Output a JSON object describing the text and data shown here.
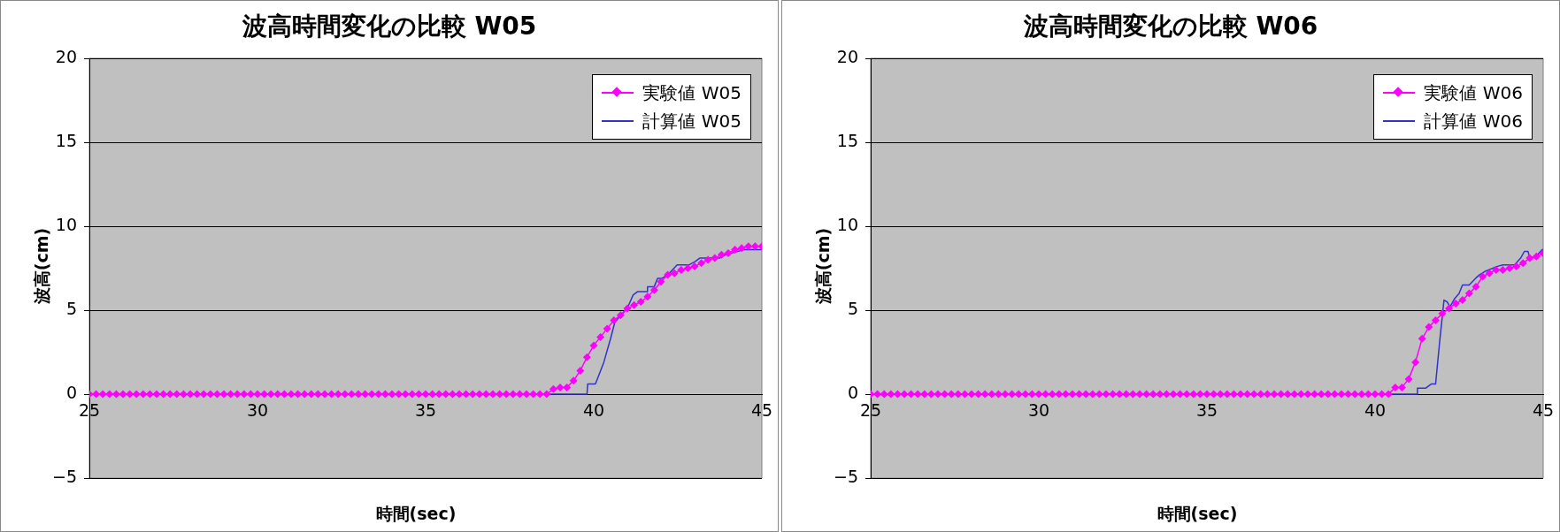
{
  "chart_data": [
    {
      "type": "line",
      "title": "波高時間変化の比較 W05",
      "xlabel": "時間(sec)",
      "ylabel": "波高(cm)",
      "xlim": [
        25,
        45
      ],
      "xticks": [
        25,
        30,
        35,
        40,
        45
      ],
      "ylim": [
        -5,
        20
      ],
      "yticks": [
        -5,
        0,
        5,
        10,
        15,
        20
      ],
      "grid": "y",
      "legend": "top right",
      "marker": "diamond",
      "x": [
        25,
        25.2,
        25.4,
        25.6,
        25.8,
        26,
        26.2,
        26.4,
        26.6,
        26.8,
        27,
        27.2,
        27.4,
        27.6,
        27.8,
        28,
        28.2,
        28.4,
        28.6,
        28.8,
        29,
        29.2,
        29.4,
        29.6,
        29.8,
        30,
        30.2,
        30.4,
        30.6,
        30.8,
        31,
        31.2,
        31.4,
        31.6,
        31.8,
        32,
        32.2,
        32.4,
        32.6,
        32.8,
        33,
        33.2,
        33.4,
        33.6,
        33.8,
        34,
        34.2,
        34.4,
        34.6,
        34.8,
        35,
        35.2,
        35.4,
        35.6,
        35.8,
        36,
        36.2,
        36.4,
        36.6,
        36.8,
        37,
        37.2,
        37.4,
        37.6,
        37.8,
        38,
        38.2,
        38.4,
        38.6,
        38.8,
        39,
        39.2,
        39.4,
        39.6,
        39.8,
        40,
        40.2,
        40.4,
        40.6,
        40.8,
        41,
        41.2,
        41.4,
        41.6,
        41.8,
        42,
        42.2,
        42.4,
        42.6,
        42.8,
        43,
        43.2,
        43.4,
        43.6,
        43.8,
        44,
        44.2,
        44.4,
        44.6,
        44.8,
        45
      ],
      "series": [
        {
          "name": "実験値 W05",
          "color": "#ff00ff",
          "values": [
            0,
            0,
            0,
            0,
            0,
            0,
            0,
            0,
            0,
            0,
            0,
            0,
            0,
            0,
            0,
            0,
            0,
            0,
            0,
            0,
            0,
            0,
            0,
            0,
            0,
            0,
            0,
            0,
            0,
            0,
            0,
            0,
            0,
            0,
            0,
            0,
            0,
            0,
            0,
            0,
            0,
            0,
            0,
            0,
            0,
            0,
            0,
            0,
            0,
            0,
            0,
            0,
            0,
            0,
            0,
            0,
            0,
            0,
            0,
            0,
            0,
            0,
            0,
            0,
            0,
            0,
            0,
            0,
            0,
            0.3,
            0.4,
            0.4,
            0.8,
            1.4,
            2.2,
            2.9,
            3.4,
            3.9,
            4.4,
            4.7,
            5.1,
            5.3,
            5.5,
            5.8,
            6.2,
            6.7,
            7.1,
            7.2,
            7.4,
            7.5,
            7.6,
            7.8,
            8.0,
            8.1,
            8.3,
            8.4,
            8.6,
            8.7,
            8.8,
            8.8,
            8.8
          ]
        },
        {
          "name": "計算値 W05",
          "color": "#3333cc",
          "marker": "none",
          "x": [
            25,
            39.8,
            39.82,
            40.05,
            40.3,
            40.5,
            40.63,
            40.86,
            41.04,
            41.17,
            41.3,
            41.58,
            41.6,
            41.8,
            41.9,
            42.03,
            42.2,
            42.48,
            42.84,
            43.02,
            43.15,
            43.74,
            43.92,
            44.46,
            45
          ],
          "values": [
            0,
            0,
            0.6,
            0.6,
            1.9,
            3.3,
            4.3,
            4.8,
            5.3,
            5.9,
            6.1,
            6.1,
            6.4,
            6.4,
            6.9,
            6.9,
            7.1,
            7.7,
            7.7,
            7.9,
            8.1,
            8.1,
            8.3,
            8.6,
            8.6
          ]
        }
      ]
    },
    {
      "type": "line",
      "title": "波高時間変化の比較 W06",
      "xlabel": "時間(sec)",
      "ylabel": "波高(cm)",
      "xlim": [
        25,
        45
      ],
      "xticks": [
        25,
        30,
        35,
        40,
        45
      ],
      "ylim": [
        -5,
        20
      ],
      "yticks": [
        -5,
        0,
        5,
        10,
        15,
        20
      ],
      "grid": "y",
      "legend": "top right",
      "marker": "diamond",
      "x": [
        25,
        25.2,
        25.4,
        25.6,
        25.8,
        26,
        26.2,
        26.4,
        26.6,
        26.8,
        27,
        27.2,
        27.4,
        27.6,
        27.8,
        28,
        28.2,
        28.4,
        28.6,
        28.8,
        29,
        29.2,
        29.4,
        29.6,
        29.8,
        30,
        30.2,
        30.4,
        30.6,
        30.8,
        31,
        31.2,
        31.4,
        31.6,
        31.8,
        32,
        32.2,
        32.4,
        32.6,
        32.8,
        33,
        33.2,
        33.4,
        33.6,
        33.8,
        34,
        34.2,
        34.4,
        34.6,
        34.8,
        35,
        35.2,
        35.4,
        35.6,
        35.8,
        36,
        36.2,
        36.4,
        36.6,
        36.8,
        37,
        37.2,
        37.4,
        37.6,
        37.8,
        38,
        38.2,
        38.4,
        38.6,
        38.8,
        39,
        39.2,
        39.4,
        39.6,
        39.8,
        40,
        40.2,
        40.4,
        40.6,
        40.8,
        41,
        41.2,
        41.4,
        41.6,
        41.8,
        42,
        42.2,
        42.4,
        42.6,
        42.8,
        43,
        43.2,
        43.4,
        43.6,
        43.8,
        44,
        44.2,
        44.4,
        44.6,
        44.8,
        45
      ],
      "series": [
        {
          "name": "実験値 W06",
          "color": "#ff00ff",
          "values": [
            0,
            0,
            0,
            0,
            0,
            0,
            0,
            0,
            0,
            0,
            0,
            0,
            0,
            0,
            0,
            0,
            0,
            0,
            0,
            0,
            0,
            0,
            0,
            0,
            0,
            0,
            0,
            0,
            0,
            0,
            0,
            0,
            0,
            0,
            0,
            0,
            0,
            0,
            0,
            0,
            0,
            0,
            0,
            0,
            0,
            0,
            0,
            0,
            0,
            0,
            0,
            0,
            0,
            0,
            0,
            0,
            0,
            0,
            0,
            0,
            0,
            0,
            0,
            0,
            0,
            0,
            0,
            0,
            0,
            0,
            0,
            0,
            0,
            0,
            0,
            0,
            0,
            0,
            0.4,
            0.4,
            0.9,
            1.9,
            3.3,
            4.0,
            4.4,
            4.8,
            5.1,
            5.4,
            5.6,
            6.0,
            6.4,
            7.0,
            7.2,
            7.4,
            7.4,
            7.5,
            7.6,
            7.8,
            8.1,
            8.2,
            8.4
          ]
        },
        {
          "name": "計算値 W06",
          "color": "#3333cc",
          "marker": "none",
          "x": [
            25,
            41.25,
            41.26,
            41.5,
            41.67,
            41.8,
            41.92,
            42.05,
            42.14,
            42.23,
            42.37,
            42.5,
            42.6,
            42.8,
            42.99,
            43.1,
            43.26,
            43.62,
            43.8,
            44.15,
            44.33,
            44.44,
            44.55,
            44.6,
            44.78,
            44.97,
            45
          ],
          "values": [
            0,
            0,
            0.35,
            0.35,
            0.6,
            0.6,
            3.1,
            5.6,
            5.5,
            5.2,
            5.7,
            6.0,
            6.5,
            6.5,
            6.9,
            7.1,
            7.3,
            7.6,
            7.7,
            7.7,
            8.1,
            8.5,
            8.5,
            8.1,
            8.2,
            8.6,
            8.6
          ]
        }
      ]
    }
  ]
}
